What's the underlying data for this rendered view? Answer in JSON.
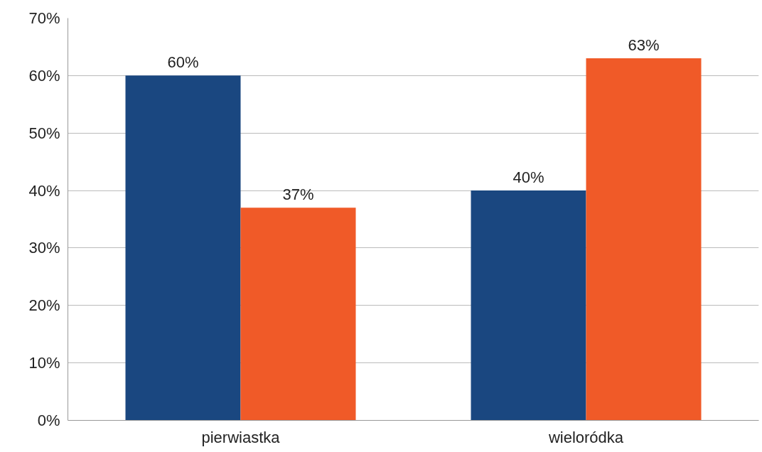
{
  "chart_data": {
    "type": "bar",
    "categories": [
      "pierwiastka",
      "wieloródka"
    ],
    "series": [
      {
        "color": "#1a4780",
        "values": [
          60,
          40
        ],
        "value_labels": [
          "60%",
          "40%"
        ]
      },
      {
        "color": "#f05a28",
        "values": [
          37,
          63
        ],
        "value_labels": [
          "37%",
          "63%"
        ]
      }
    ],
    "ylim": [
      0,
      70
    ],
    "yticks": [
      {
        "value": 0,
        "label": "0%"
      },
      {
        "value": 10,
        "label": "10%"
      },
      {
        "value": 20,
        "label": "20%"
      },
      {
        "value": 30,
        "label": "30%"
      },
      {
        "value": 40,
        "label": "40%"
      },
      {
        "value": 50,
        "label": "50%"
      },
      {
        "value": 60,
        "label": "60%"
      },
      {
        "value": 70,
        "label": "70%"
      }
    ],
    "grid": "y"
  }
}
